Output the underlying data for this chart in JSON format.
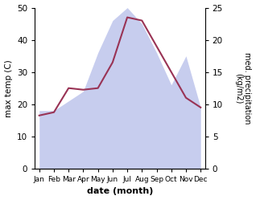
{
  "months": [
    "Jan",
    "Feb",
    "Mar",
    "Apr",
    "May",
    "Jun",
    "Jul",
    "Aug",
    "Sep",
    "Oct",
    "Nov",
    "Dec"
  ],
  "x": [
    0,
    1,
    2,
    3,
    4,
    5,
    6,
    7,
    8,
    9,
    10,
    11
  ],
  "temp": [
    16.5,
    17.5,
    25.0,
    24.5,
    25.0,
    33.0,
    47.0,
    46.0,
    38.0,
    30.0,
    22.0,
    19.0
  ],
  "precip": [
    9.0,
    9.0,
    10.5,
    12.0,
    18.0,
    23.0,
    25.0,
    22.5,
    18.0,
    13.0,
    17.5,
    9.5
  ],
  "temp_color": "#993355",
  "precip_color": "#b0b8e8",
  "left_ylabel": "max temp (C)",
  "right_ylabel_line1": "med. precipitation",
  "right_ylabel_line2": "(kg/m2)",
  "xlabel": "date (month)",
  "left_ylim": [
    0,
    50
  ],
  "right_ylim": [
    0,
    25
  ],
  "left_yticks": [
    0,
    10,
    20,
    30,
    40,
    50
  ],
  "right_yticks": [
    0,
    5,
    10,
    15,
    20,
    25
  ],
  "bg_color": "#ffffff",
  "fig_width": 3.18,
  "fig_height": 2.49,
  "dpi": 100
}
